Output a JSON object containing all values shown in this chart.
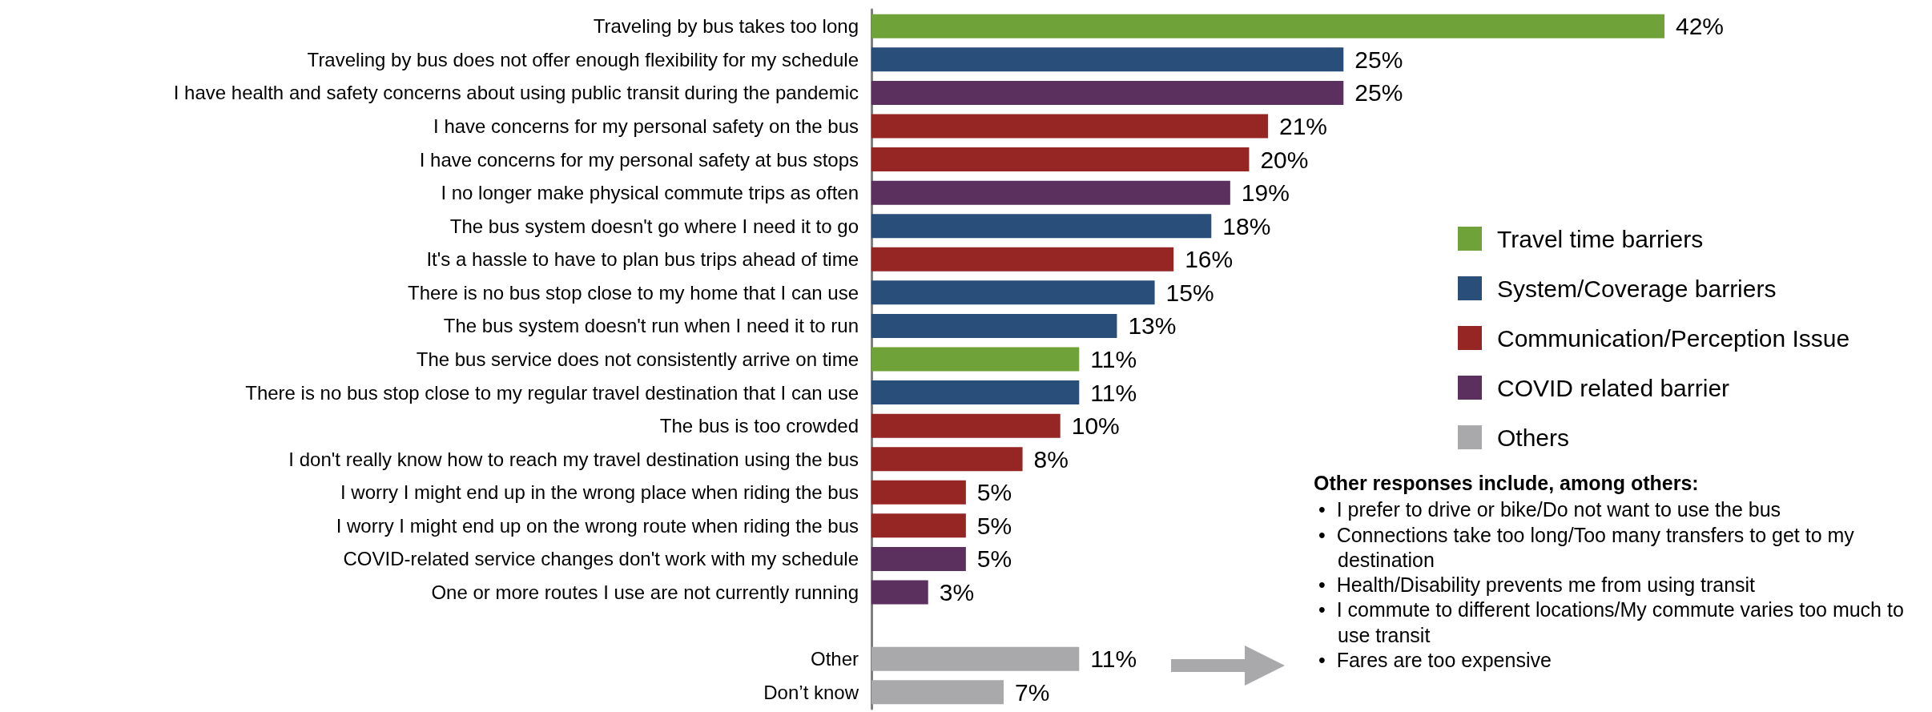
{
  "chart_data": {
    "type": "bar",
    "orientation": "horizontal",
    "stacked": true,
    "legend": "right",
    "categories": [
      "Traveling by bus takes too long",
      "Traveling by bus does not offer enough flexibility for my schedule",
      "I have health and safety concerns about using public transit during the pandemic",
      "I have concerns for my personal safety on the bus",
      "I have concerns for my personal safety at bus stops",
      "I no longer make physical commute trips as often",
      "The bus system doesn't go where I need it to go",
      "It's a hassle to have to plan bus trips ahead of time",
      "There is no bus stop close to my home that I can use",
      "The bus system doesn't run when I need it to run",
      "The bus service does not consistently arrive on time",
      "There is no bus stop close to my regular travel destination that I can use",
      "The bus is too crowded",
      "I don't really know how to reach my travel destination using the bus",
      "I worry I might end up in the wrong place when riding the bus",
      "I worry I might end up on the wrong route when riding the bus",
      "COVID-related service changes don't work with my schedule",
      "One or more routes I use are not currently running",
      null,
      "Other",
      "Don’t know"
    ],
    "series": [
      {
        "name": "Travel time barriers",
        "color": "#70a23a",
        "values": [
          42,
          null,
          null,
          null,
          null,
          null,
          null,
          null,
          null,
          null,
          11,
          null,
          null,
          null,
          null,
          null,
          null,
          null,
          null,
          null,
          null
        ],
        "value_labels": [
          "42%",
          null,
          null,
          null,
          null,
          null,
          null,
          null,
          null,
          null,
          "11%",
          null,
          null,
          null,
          null,
          null,
          null,
          null,
          null,
          null,
          null
        ]
      },
      {
        "name": "System/Coverage barriers",
        "color": "#2a4e7a",
        "values": [
          null,
          25,
          null,
          null,
          null,
          null,
          18,
          null,
          15,
          13,
          null,
          11,
          null,
          null,
          null,
          null,
          null,
          null,
          null,
          null,
          null
        ],
        "value_labels": [
          null,
          "25%",
          null,
          null,
          null,
          null,
          "18%",
          null,
          "15%",
          "13%",
          null,
          "11%",
          null,
          null,
          null,
          null,
          null,
          null,
          null,
          null,
          null
        ]
      },
      {
        "name": "Communication/Perception Issue",
        "color": "#952624",
        "values": [
          null,
          null,
          null,
          21,
          20,
          null,
          null,
          16,
          null,
          null,
          null,
          null,
          10,
          8,
          5,
          5,
          null,
          null,
          null,
          null,
          null
        ],
        "value_labels": [
          null,
          null,
          null,
          "21%",
          "20%",
          null,
          null,
          "16%",
          null,
          null,
          null,
          null,
          "10%",
          "8%",
          "5%",
          "5%",
          null,
          null,
          null,
          null,
          null
        ]
      },
      {
        "name": "COVID related barrier",
        "color": "#5b2f5e",
        "values": [
          null,
          null,
          25,
          null,
          null,
          19,
          null,
          null,
          null,
          null,
          null,
          null,
          null,
          null,
          null,
          null,
          5,
          3,
          null,
          null,
          null
        ],
        "value_labels": [
          null,
          null,
          "25%",
          null,
          null,
          "19%",
          null,
          null,
          null,
          null,
          null,
          null,
          null,
          null,
          null,
          null,
          "5%",
          "3%",
          null,
          null,
          null
        ]
      },
      {
        "name": "Others",
        "color": "#a9a9ab",
        "values": [
          null,
          null,
          null,
          null,
          null,
          null,
          null,
          null,
          null,
          null,
          null,
          null,
          null,
          null,
          null,
          null,
          null,
          null,
          null,
          11,
          7
        ],
        "value_labels": [
          null,
          null,
          null,
          null,
          null,
          null,
          null,
          null,
          null,
          null,
          null,
          null,
          null,
          null,
          null,
          null,
          null,
          null,
          null,
          "11%",
          "7%"
        ]
      }
    ],
    "annotations": [
      "Other responses include, among others:",
      "•  I prefer to drive or bike/Do not want to use the bus",
      "•  Connections take too long/Too many transfers to get to my destination",
      "•  Health/Disability prevents me from using transit",
      "•  I commute to different locations/My commute varies too much to use transit",
      "•  Fares are too expensive"
    ]
  }
}
